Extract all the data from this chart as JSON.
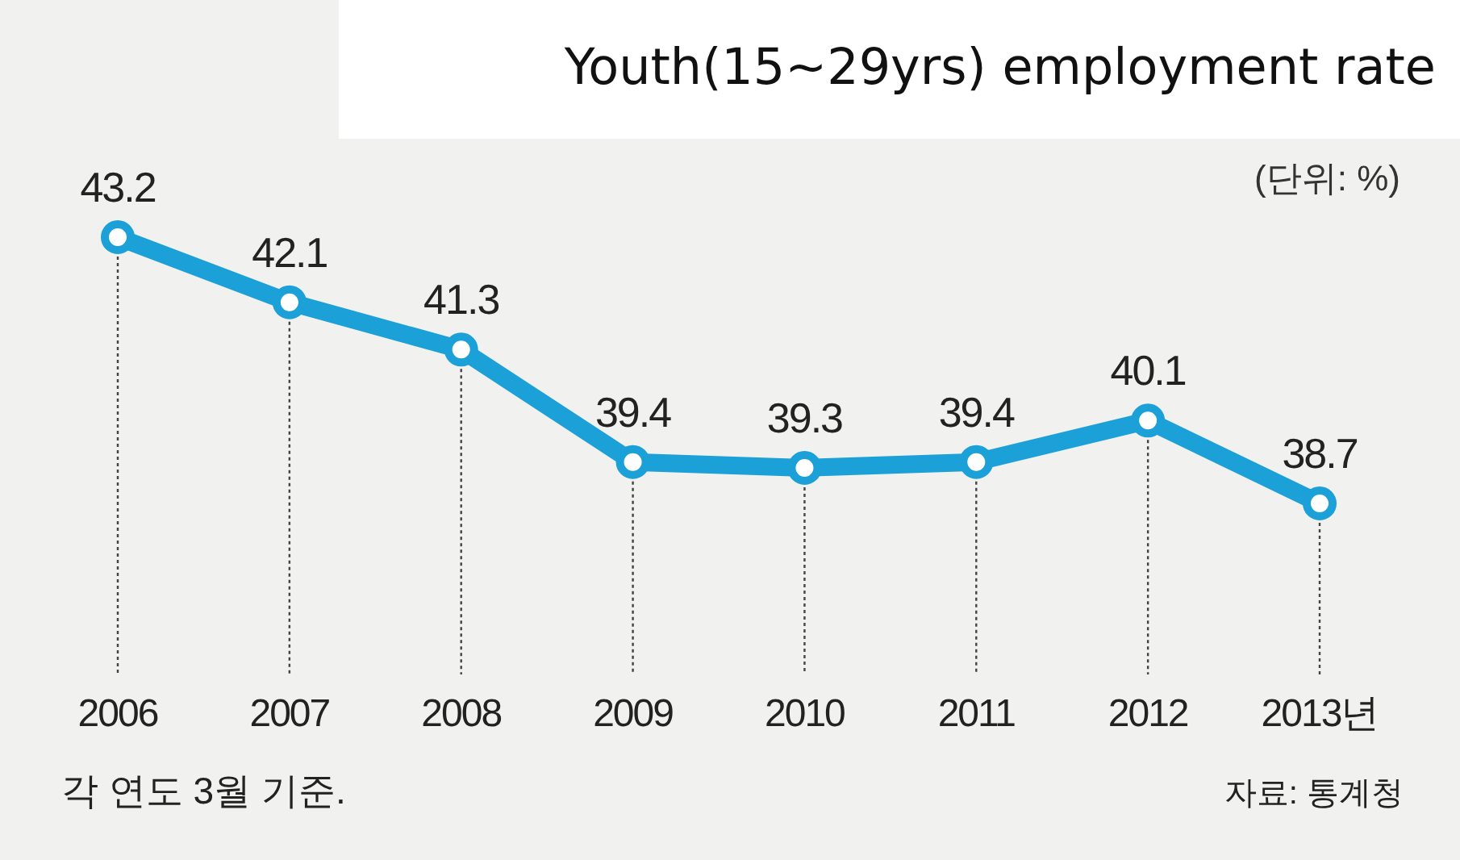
{
  "chart_data": {
    "type": "line",
    "title": "Youth(15~29yrs) employment rate",
    "subtitle": "(단위: %)",
    "categories": [
      "2006",
      "2007",
      "2008",
      "2009",
      "2010",
      "2011",
      "2012",
      "2013년"
    ],
    "series": [
      {
        "color": "#1ba0d8",
        "values": [
          43.2,
          42.1,
          41.3,
          39.4,
          39.3,
          39.4,
          40.1,
          38.7
        ]
      }
    ],
    "data_labels": true,
    "marker": "circle",
    "grid": "x",
    "tick_labels": "x",
    "annotations": [
      "각 연도 3월 기준.",
      "자료: 통계청"
    ]
  }
}
